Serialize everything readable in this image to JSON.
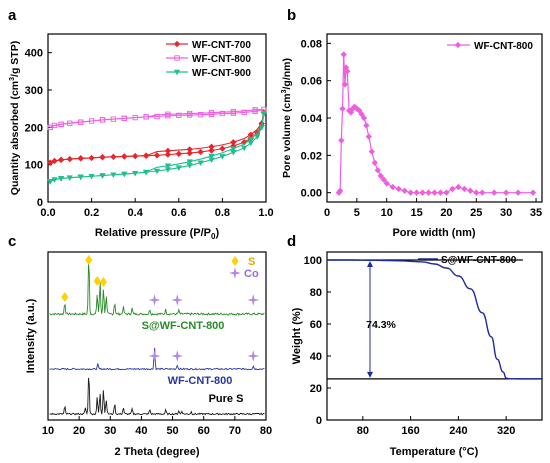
{
  "figure": {
    "panels": [
      "a",
      "b",
      "c",
      "d"
    ]
  },
  "chart_data": [
    {
      "id": "a",
      "type": "line",
      "panel_label": "a",
      "xlabel": "Relative pressure (P/P0)",
      "ylabel": "Quantity absorbed (cm3/g STP)",
      "xlim": [
        0,
        1.0
      ],
      "ylim": [
        0,
        450
      ],
      "xticks": [
        "0.0",
        "0.2",
        "0.4",
        "0.6",
        "0.8",
        "1.0"
      ],
      "yticks": [
        "0",
        "100",
        "200",
        "300",
        "400"
      ],
      "legend_position": "top-right",
      "series": [
        {
          "name": "WF-CNT-700",
          "color": "#e8262b",
          "marker": "diamond",
          "x": [
            0.01,
            0.03,
            0.06,
            0.1,
            0.15,
            0.2,
            0.25,
            0.3,
            0.35,
            0.4,
            0.45,
            0.5,
            0.55,
            0.6,
            0.65,
            0.7,
            0.75,
            0.8,
            0.85,
            0.9,
            0.93,
            0.96,
            0.98,
            0.99
          ],
          "y": [
            105,
            110,
            113,
            115,
            117,
            118,
            120,
            121,
            122,
            123,
            124,
            125,
            127,
            129,
            131,
            134,
            138,
            143,
            150,
            160,
            170,
            185,
            210,
            240
          ]
        },
        {
          "name": "WF-CNT-800",
          "color": "#ee5fe0",
          "marker": "square-open",
          "x": [
            0.01,
            0.03,
            0.06,
            0.1,
            0.15,
            0.2,
            0.25,
            0.3,
            0.35,
            0.4,
            0.45,
            0.5,
            0.55,
            0.6,
            0.65,
            0.7,
            0.75,
            0.8,
            0.85,
            0.9,
            0.95,
            0.99
          ],
          "y": [
            200,
            205,
            208,
            211,
            214,
            217,
            220,
            222,
            224,
            226,
            228,
            229,
            231,
            232,
            233,
            234,
            235,
            237,
            238,
            240,
            243,
            248
          ]
        },
        {
          "name": "WF-CNT-900",
          "color": "#1fbf8f",
          "marker": "triangle-down",
          "x": [
            0.01,
            0.03,
            0.06,
            0.1,
            0.15,
            0.2,
            0.25,
            0.3,
            0.35,
            0.4,
            0.45,
            0.5,
            0.55,
            0.6,
            0.65,
            0.7,
            0.75,
            0.8,
            0.85,
            0.9,
            0.93,
            0.96,
            0.98,
            0.99
          ],
          "y": [
            55,
            60,
            63,
            65,
            67,
            69,
            71,
            73,
            75,
            77,
            80,
            83,
            87,
            92,
            98,
            105,
            113,
            122,
            133,
            145,
            158,
            175,
            200,
            235
          ]
        }
      ]
    },
    {
      "id": "b",
      "type": "line",
      "panel_label": "b",
      "xlabel": "Pore width (nm)",
      "ylabel": "Pore volume (cm3/g/nm)",
      "xlim": [
        0,
        36
      ],
      "ylim": [
        -0.005,
        0.085
      ],
      "xticks": [
        "0",
        "5",
        "10",
        "15",
        "20",
        "25",
        "30",
        "35"
      ],
      "yticks": [
        "0.00",
        "0.02",
        "0.04",
        "0.06",
        "0.08"
      ],
      "legend_position": "top-right",
      "series": [
        {
          "name": "WF-CNT-800",
          "color": "#ee5fe0",
          "marker": "diamond",
          "x": [
            2.0,
            2.2,
            2.4,
            2.6,
            2.8,
            3.0,
            3.2,
            3.4,
            3.7,
            4.0,
            4.3,
            4.6,
            5.0,
            5.4,
            5.8,
            6.2,
            6.6,
            7.0,
            7.5,
            8.0,
            8.5,
            9.0,
            9.5,
            10.0,
            11,
            12,
            13,
            14,
            15,
            16,
            17,
            18,
            19,
            20,
            21,
            22,
            23,
            24,
            25,
            26,
            28,
            30,
            32,
            34.5
          ],
          "y": [
            0.0,
            0.001,
            0.028,
            0.045,
            0.074,
            0.058,
            0.067,
            0.065,
            0.044,
            0.043,
            0.045,
            0.046,
            0.045,
            0.044,
            0.042,
            0.04,
            0.036,
            0.03,
            0.022,
            0.016,
            0.012,
            0.009,
            0.007,
            0.005,
            0.003,
            0.002,
            0.001,
            0.0,
            0.0,
            0.0,
            0.0,
            0.0,
            0.0,
            0.0,
            0.002,
            0.003,
            0.002,
            0.001,
            0.0,
            0.0,
            0.0,
            0.0,
            0.0,
            0.0
          ]
        }
      ]
    },
    {
      "id": "c",
      "type": "line",
      "panel_label": "c",
      "xlabel": "2 Theta (degree)",
      "ylabel": "Intensity (a.u.)",
      "xlim": [
        10,
        80
      ],
      "xticks": [
        "10",
        "20",
        "30",
        "40",
        "50",
        "60",
        "70",
        "80"
      ],
      "curve_labels": [
        "S@WF-CNT-800",
        "WF-CNT-800",
        "Pure S"
      ],
      "legend": [
        {
          "symbol": "diamond",
          "label": "S",
          "color": "#ffd100"
        },
        {
          "symbol": "star4",
          "label": "Co",
          "color": "#b589e6"
        }
      ],
      "series": [
        {
          "name": "S@WF-CNT-800",
          "color": "#2a8a2a",
          "offset": 2.0,
          "peaks": [
            [
              15.4,
              0.2
            ],
            [
              23.1,
              1.0
            ],
            [
              25.8,
              0.35
            ],
            [
              26.7,
              0.55
            ],
            [
              27.8,
              0.45
            ],
            [
              28.7,
              0.3
            ],
            [
              31.4,
              0.2
            ],
            [
              34.2,
              0.12
            ],
            [
              37.0,
              0.1
            ],
            [
              42.7,
              0.08
            ],
            [
              47.8,
              0.08
            ],
            [
              52.0,
              0.06
            ]
          ]
        },
        {
          "name": "WF-CNT-800",
          "color": "#2838a0",
          "offset": 1.0,
          "peaks": [
            [
              26.0,
              0.12
            ],
            [
              44.2,
              0.55
            ],
            [
              51.5,
              0.1
            ],
            [
              75.9,
              0.08
            ]
          ]
        },
        {
          "name": "Pure S",
          "color": "#1a1a1a",
          "offset": 0.0,
          "peaks": [
            [
              15.4,
              0.18
            ],
            [
              22.0,
              0.15
            ],
            [
              23.1,
              1.0
            ],
            [
              25.8,
              0.4
            ],
            [
              26.7,
              0.5
            ],
            [
              27.8,
              0.6
            ],
            [
              28.7,
              0.35
            ],
            [
              31.4,
              0.25
            ],
            [
              34.2,
              0.15
            ],
            [
              37.0,
              0.12
            ],
            [
              42.7,
              0.1
            ],
            [
              47.8,
              0.09
            ],
            [
              52.0,
              0.08
            ],
            [
              53.0,
              0.07
            ],
            [
              56.0,
              0.05
            ]
          ]
        }
      ],
      "markers": {
        "S": [
          15.4,
          23.1,
          25.8,
          27.8
        ],
        "Co": [
          44.2,
          51.5,
          75.9
        ]
      }
    },
    {
      "id": "d",
      "type": "line",
      "panel_label": "d",
      "xlabel": "Temperature (°C)",
      "ylabel": "Weight (%)",
      "xlim": [
        20,
        380
      ],
      "ylim": [
        0,
        105
      ],
      "xticks": [
        "80",
        "160",
        "240",
        "320"
      ],
      "yticks": [
        "0",
        "20",
        "40",
        "60",
        "80",
        "100"
      ],
      "legend_position": "top-right",
      "annotation": "74.3%",
      "series": [
        {
          "name": "S@WF-CNT-800",
          "color": "#1e2a9e",
          "x": [
            20,
            60,
            100,
            140,
            180,
            200,
            220,
            240,
            260,
            280,
            295,
            305,
            315,
            320,
            325,
            340,
            380
          ],
          "y": [
            100,
            100,
            99.8,
            99.5,
            98.8,
            97.5,
            95,
            90,
            82,
            67,
            52,
            38,
            30,
            26.2,
            25.8,
            25.7,
            25.7
          ]
        }
      ]
    }
  ]
}
